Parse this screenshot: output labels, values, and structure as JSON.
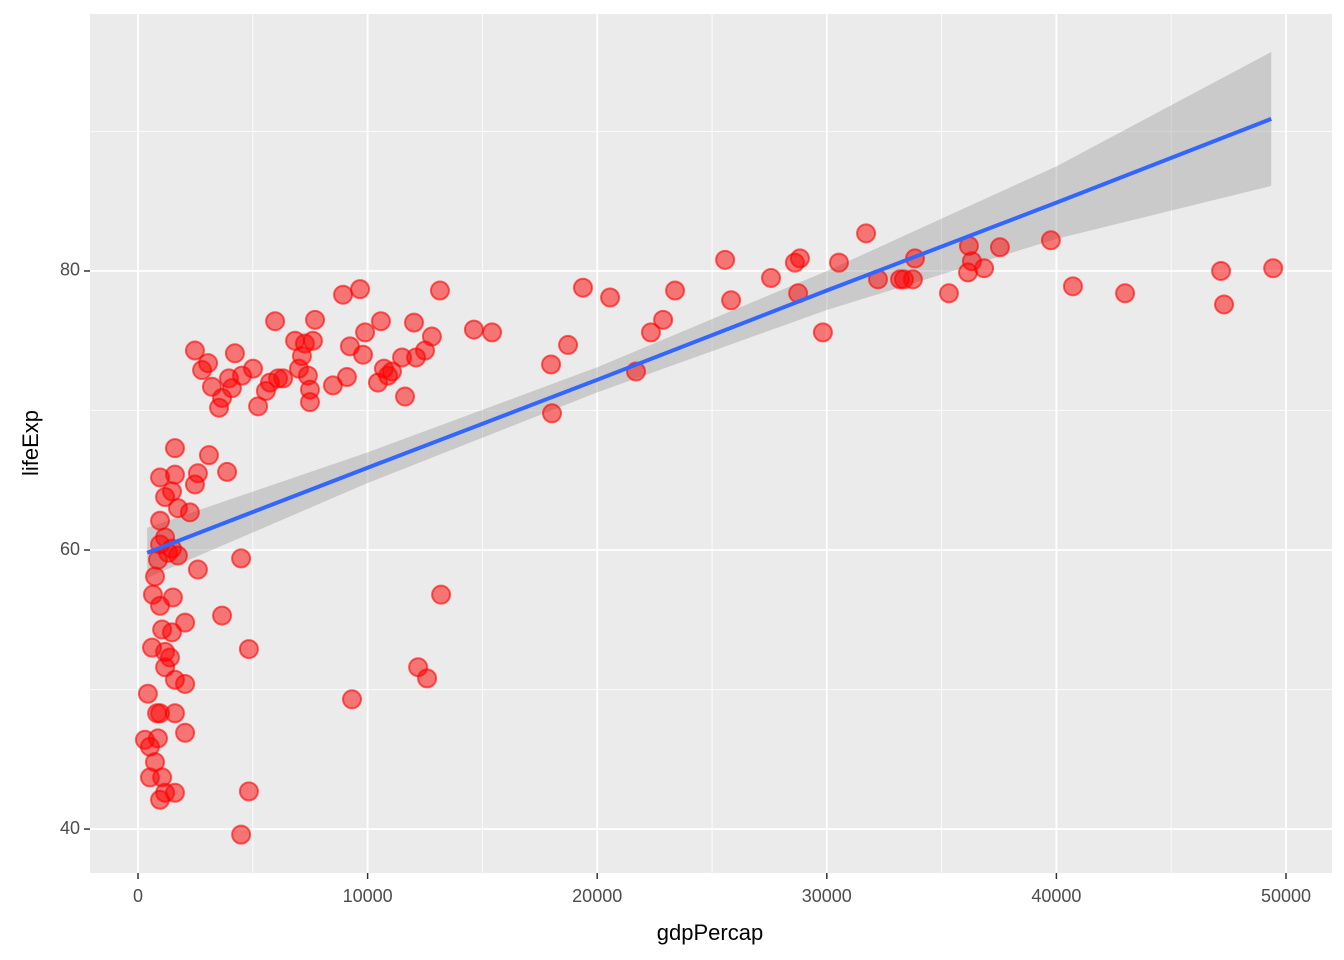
{
  "chart_data": {
    "type": "scatter",
    "x_label": "gdpPercap",
    "y_label": "lifeExp",
    "xlim": [
      -2091,
      52003
    ],
    "ylim": [
      36.85,
      98.42
    ],
    "xticks": [
      0,
      10000,
      20000,
      30000,
      40000,
      50000
    ],
    "yticks": [
      40,
      60,
      80
    ],
    "x_minor_ticks": [
      5000,
      15000,
      25000,
      35000,
      45000
    ],
    "y_minor_ticks": [
      50,
      70,
      90
    ],
    "grid": true,
    "point_color": "#ff0000",
    "line_color": "#3366ff",
    "band_color": "#999999",
    "x": [
      300,
      520,
      430,
      520,
      740,
      870,
      960,
      830,
      1050,
      1180,
      1610,
      960,
      610,
      650,
      740,
      870,
      960,
      960,
      1050,
      1180,
      1180,
      1390,
      1610,
      1610,
      1520,
      1480,
      1180,
      1310,
      1480,
      1740,
      960,
      960,
      1180,
      1480,
      1740,
      1610,
      1610,
      2050,
      2050,
      2050,
      2260,
      2480,
      2610,
      2610,
      3090,
      3880,
      3660,
      4490,
      4830,
      4830,
      4490,
      2480,
      2790,
      3050,
      3220,
      3530,
      3660,
      3960,
      4220,
      4090,
      4530,
      5010,
      5230,
      5570,
      5750,
      5970,
      6100,
      6320,
      6840,
      7010,
      7140,
      7270,
      7400,
      7490,
      7490,
      7620,
      7710,
      8490,
      8930,
      9100,
      9230,
      9670,
      9800,
      9890,
      10450,
      10580,
      10710,
      10890,
      11060,
      11500,
      11630,
      12020,
      12110,
      12500,
      12800,
      13150,
      14630,
      15420,
      9320,
      12200,
      12590,
      13200,
      17990,
      18030,
      18730,
      19380,
      20560,
      21690,
      22340,
      22870,
      23390,
      25570,
      25830,
      27570,
      28610,
      28830,
      28750,
      29830,
      30530,
      31710,
      32230,
      33190,
      33360,
      33750,
      33840,
      35320,
      36190,
      36150,
      36320,
      36850,
      37540,
      39760,
      40720,
      42990,
      47170,
      47300,
      49440
    ],
    "y": [
      46.4,
      45.9,
      49.7,
      43.7,
      44.8,
      46.5,
      42.1,
      48.3,
      43.7,
      42.6,
      42.6,
      48.3,
      53.0,
      56.8,
      58.1,
      59.3,
      60.4,
      56.0,
      54.3,
      52.7,
      51.6,
      52.3,
      50.7,
      48.3,
      56.6,
      54.1,
      60.9,
      59.8,
      60.1,
      59.6,
      62.1,
      65.2,
      63.8,
      64.2,
      63.0,
      65.4,
      67.3,
      54.8,
      50.4,
      46.9,
      62.7,
      64.7,
      65.5,
      58.6,
      66.8,
      65.6,
      55.3,
      59.4,
      52.9,
      42.7,
      39.6,
      74.3,
      72.9,
      73.4,
      71.7,
      70.2,
      70.9,
      72.3,
      74.1,
      71.6,
      72.5,
      73.0,
      70.3,
      71.4,
      72.0,
      76.4,
      72.3,
      72.3,
      75.0,
      73.0,
      73.9,
      74.8,
      72.5,
      71.5,
      70.6,
      75.0,
      76.5,
      71.8,
      78.3,
      72.4,
      74.6,
      78.7,
      74.0,
      75.6,
      72.0,
      76.4,
      73.0,
      72.5,
      72.8,
      73.8,
      71.0,
      76.3,
      73.8,
      74.3,
      75.3,
      78.6,
      75.8,
      75.6,
      49.3,
      51.6,
      50.8,
      56.8,
      73.3,
      69.8,
      74.7,
      78.8,
      78.1,
      72.8,
      75.6,
      76.5,
      78.6,
      80.8,
      77.9,
      79.5,
      80.6,
      80.9,
      78.4,
      75.6,
      80.6,
      82.7,
      79.4,
      79.4,
      79.4,
      79.4,
      80.9,
      78.4,
      81.8,
      79.9,
      80.7,
      80.2,
      81.7,
      82.2,
      78.9,
      78.4,
      80.0,
      77.6,
      80.2
    ],
    "smooth": {
      "x": [
        400,
        10000,
        20000,
        30000,
        40000,
        49357
      ],
      "fit": [
        59.8,
        65.9,
        72.2,
        78.6,
        84.9,
        90.9
      ],
      "lower": [
        58.0,
        64.8,
        71.3,
        77.2,
        82.3,
        86.1
      ],
      "upper": [
        61.6,
        67.0,
        73.1,
        80.0,
        87.5,
        95.7
      ]
    }
  }
}
